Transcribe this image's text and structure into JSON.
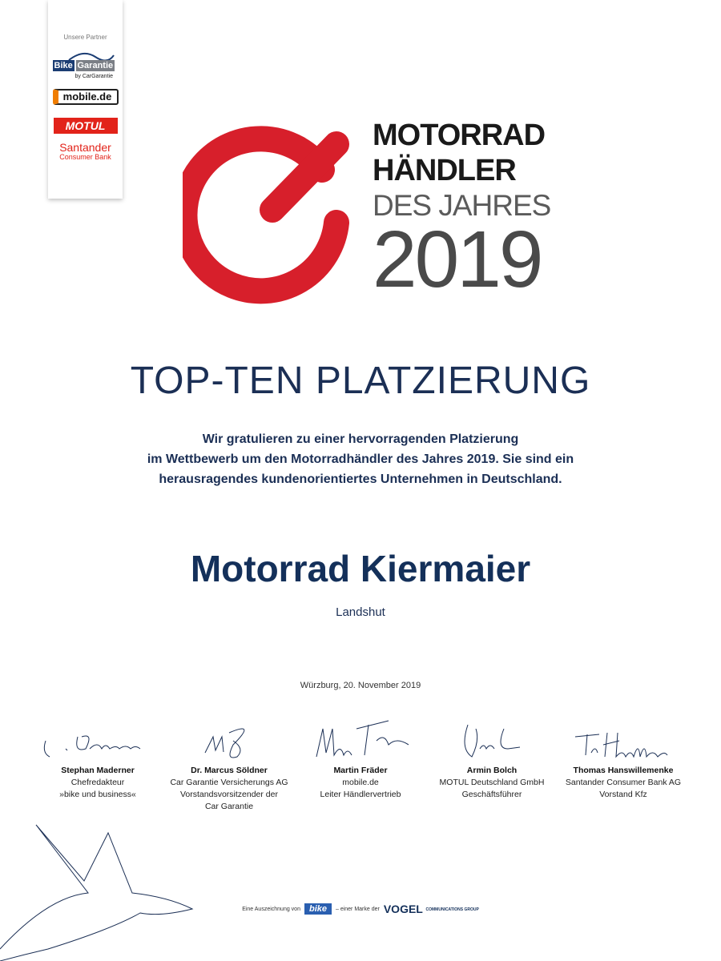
{
  "partners": {
    "label": "Unsere Partner",
    "logos": [
      {
        "name": "Bike Garantie",
        "parts": [
          "Bike",
          "Garantie"
        ],
        "sub": "by CarGarantie"
      },
      {
        "name": "mobile.de"
      },
      {
        "name": "MOTUL"
      },
      {
        "name": "Santander",
        "sub": "Consumer Bank"
      }
    ]
  },
  "brand": {
    "line1": "MOTORRAD",
    "line2": "HÄNDLER",
    "line3": "DES JAHRES",
    "year": "2019",
    "accent": "#d71f2b"
  },
  "title": "TOP-TEN PLATZIERUNG",
  "message": [
    "Wir gratulieren zu einer hervorragenden Platzierung",
    "im Wettbewerb um den Motorradhändler des Jahres 2019. Sie sind ein",
    "herausragendes kundenorientiertes Unternehmen in Deutschland."
  ],
  "recipient": {
    "name": "Motorrad Kiermaier",
    "city": "Landshut"
  },
  "date": "Würzburg, 20. November 2019",
  "signatories": [
    {
      "name": "Stephan Maderner",
      "lines": [
        "Chefredakteur",
        "»bike und business«"
      ]
    },
    {
      "name": "Dr. Marcus Söldner",
      "lines": [
        "Car Garantie Versicherungs AG",
        "Vorstandsvorsitzender der",
        "Car Garantie"
      ]
    },
    {
      "name": "Martin Fräder",
      "lines": [
        "mobile.de",
        "Leiter Händlervertrieb"
      ]
    },
    {
      "name": "Armin Bolch",
      "lines": [
        "MOTUL Deutschland GmbH",
        "Geschäftsführer"
      ]
    },
    {
      "name": "Thomas Hanswillemenke",
      "lines": [
        "Santander Consumer Bank AG",
        "Vorstand Kfz"
      ]
    }
  ],
  "footer": {
    "prefix": "Eine Auszeichnung von",
    "bike_logo": "bike",
    "middle": "– einer Marke der",
    "vogel": "VOGEL",
    "vogel_sub": "COMMUNICATIONS GROUP"
  }
}
